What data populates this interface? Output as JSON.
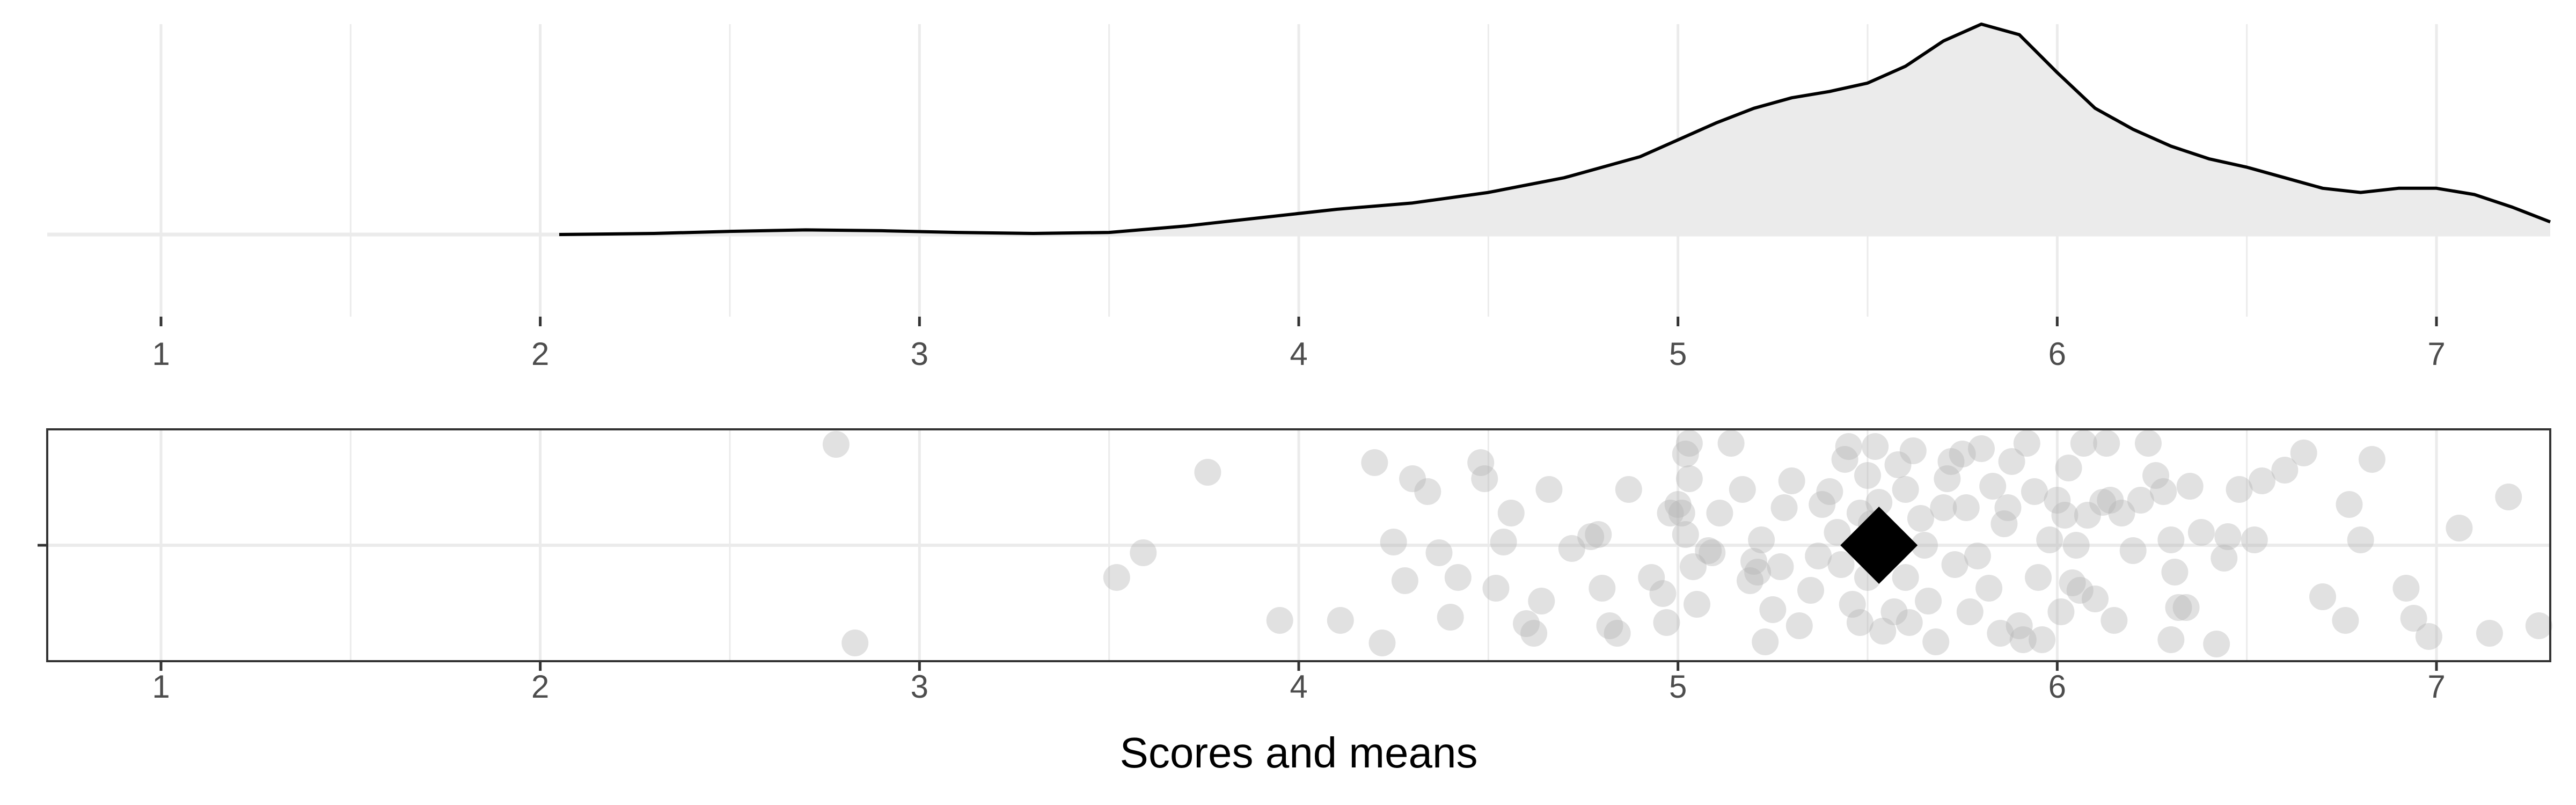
{
  "chart_data": [
    {
      "type": "density",
      "title": "",
      "xlabel": "",
      "ylabel": "",
      "xlim": [
        0.7,
        7.3
      ],
      "x_ticks": [
        "1",
        "2",
        "3",
        "4",
        "5",
        "6",
        "7"
      ],
      "grid": true,
      "fill_color": "#ebebeb",
      "line_color": "#000000",
      "density_curve": {
        "x": [
          2.05,
          2.3,
          2.5,
          2.7,
          2.9,
          3.1,
          3.3,
          3.5,
          3.7,
          3.9,
          4.1,
          4.3,
          4.5,
          4.7,
          4.9,
          5.0,
          5.1,
          5.2,
          5.3,
          5.4,
          5.5,
          5.6,
          5.7,
          5.8,
          5.9,
          6.0,
          6.1,
          6.2,
          6.3,
          6.4,
          6.5,
          6.6,
          6.7,
          6.8,
          6.9,
          7.0,
          7.1,
          7.2,
          7.3
        ],
        "y": [
          0.0,
          0.005,
          0.015,
          0.022,
          0.018,
          0.01,
          0.005,
          0.01,
          0.04,
          0.08,
          0.12,
          0.15,
          0.2,
          0.27,
          0.37,
          0.45,
          0.53,
          0.6,
          0.65,
          0.68,
          0.72,
          0.8,
          0.92,
          1.0,
          0.95,
          0.77,
          0.6,
          0.5,
          0.42,
          0.36,
          0.32,
          0.27,
          0.22,
          0.2,
          0.22,
          0.22,
          0.19,
          0.13,
          0.06
        ]
      }
    },
    {
      "type": "scatter",
      "title": "",
      "xlabel": "Scores and means",
      "ylabel": "",
      "xlim": [
        0.7,
        7.3
      ],
      "x_ticks": [
        "1",
        "2",
        "3",
        "4",
        "5",
        "6",
        "7"
      ],
      "grid": true,
      "point_color": "#b3b3b3",
      "point_opacity": 0.4,
      "mean": 5.53,
      "mean_marker": "diamond",
      "points": [
        [
          2.78,
          0.94
        ],
        [
          2.83,
          -0.91
        ],
        [
          3.52,
          -0.3
        ],
        [
          3.59,
          -0.07
        ],
        [
          3.76,
          0.68
        ],
        [
          3.95,
          -0.7
        ],
        [
          4.11,
          -0.7
        ],
        [
          4.2,
          0.77
        ],
        [
          4.22,
          -0.91
        ],
        [
          4.25,
          0.03
        ],
        [
          4.28,
          -0.33
        ],
        [
          4.3,
          0.62
        ],
        [
          4.34,
          0.5
        ],
        [
          4.37,
          -0.07
        ],
        [
          4.4,
          -0.67
        ],
        [
          4.42,
          -0.3
        ],
        [
          4.48,
          0.77
        ],
        [
          4.49,
          0.62
        ],
        [
          4.52,
          -0.4
        ],
        [
          4.54,
          0.03
        ],
        [
          4.56,
          0.3
        ],
        [
          4.6,
          -0.73
        ],
        [
          4.62,
          -0.82
        ],
        [
          4.64,
          -0.52
        ],
        [
          4.66,
          0.52
        ],
        [
          4.72,
          -0.03
        ],
        [
          4.77,
          0.08
        ],
        [
          4.79,
          0.1
        ],
        [
          4.8,
          -0.4
        ],
        [
          4.82,
          -0.75
        ],
        [
          4.84,
          -0.82
        ],
        [
          4.87,
          0.52
        ],
        [
          4.93,
          -0.3
        ],
        [
          4.96,
          -0.45
        ],
        [
          4.97,
          -0.72
        ],
        [
          4.98,
          0.3
        ],
        [
          5.0,
          0.38
        ],
        [
          5.01,
          0.3
        ],
        [
          5.02,
          0.1
        ],
        [
          5.02,
          0.85
        ],
        [
          5.03,
          0.62
        ],
        [
          5.03,
          0.95
        ],
        [
          5.04,
          -0.2
        ],
        [
          5.05,
          -0.55
        ],
        [
          5.08,
          -0.05
        ],
        [
          5.09,
          -0.07
        ],
        [
          5.11,
          0.3
        ],
        [
          5.14,
          0.95
        ],
        [
          5.17,
          0.52
        ],
        [
          5.19,
          -0.33
        ],
        [
          5.2,
          -0.15
        ],
        [
          5.21,
          -0.25
        ],
        [
          5.22,
          0.05
        ],
        [
          5.23,
          -0.9
        ],
        [
          5.25,
          -0.6
        ],
        [
          5.27,
          -0.2
        ],
        [
          5.28,
          0.35
        ],
        [
          5.3,
          0.6
        ],
        [
          5.32,
          -0.75
        ],
        [
          5.35,
          -0.42
        ],
        [
          5.37,
          -0.1
        ],
        [
          5.38,
          0.38
        ],
        [
          5.4,
          0.5
        ],
        [
          5.42,
          0.12
        ],
        [
          5.43,
          -0.18
        ],
        [
          5.44,
          0.8
        ],
        [
          5.45,
          0.92
        ],
        [
          5.46,
          -0.55
        ],
        [
          5.48,
          -0.72
        ],
        [
          5.48,
          0.3
        ],
        [
          5.5,
          -0.3
        ],
        [
          5.5,
          0.65
        ],
        [
          5.51,
          0.2
        ],
        [
          5.52,
          0.92
        ],
        [
          5.53,
          0.4
        ],
        [
          5.54,
          -0.8
        ],
        [
          5.55,
          0.1
        ],
        [
          5.57,
          -0.62
        ],
        [
          5.58,
          0.75
        ],
        [
          5.6,
          -0.3
        ],
        [
          5.6,
          0.52
        ],
        [
          5.61,
          -0.72
        ],
        [
          5.62,
          0.88
        ],
        [
          5.64,
          0.25
        ],
        [
          5.65,
          0.0
        ],
        [
          5.66,
          -0.52
        ],
        [
          5.68,
          -0.9
        ],
        [
          5.7,
          0.35
        ],
        [
          5.71,
          0.62
        ],
        [
          5.72,
          0.78
        ],
        [
          5.73,
          -0.18
        ],
        [
          5.75,
          0.85
        ],
        [
          5.76,
          0.35
        ],
        [
          5.77,
          -0.62
        ],
        [
          5.79,
          -0.1
        ],
        [
          5.8,
          0.9
        ],
        [
          5.82,
          -0.4
        ],
        [
          5.83,
          0.55
        ],
        [
          5.85,
          -0.82
        ],
        [
          5.86,
          0.2
        ],
        [
          5.87,
          0.35
        ],
        [
          5.88,
          0.78
        ],
        [
          5.9,
          -0.75
        ],
        [
          5.91,
          -0.88
        ],
        [
          5.92,
          0.95
        ],
        [
          5.94,
          0.5
        ],
        [
          5.95,
          -0.3
        ],
        [
          5.96,
          -0.88
        ],
        [
          5.98,
          0.05
        ],
        [
          6.0,
          0.42
        ],
        [
          6.01,
          -0.62
        ],
        [
          6.02,
          0.28
        ],
        [
          6.03,
          0.72
        ],
        [
          6.04,
          -0.35
        ],
        [
          6.05,
          0.0
        ],
        [
          6.06,
          -0.42
        ],
        [
          6.07,
          0.95
        ],
        [
          6.08,
          0.28
        ],
        [
          6.1,
          -0.5
        ],
        [
          6.12,
          0.4
        ],
        [
          6.13,
          0.95
        ],
        [
          6.14,
          0.42
        ],
        [
          6.15,
          -0.7
        ],
        [
          6.17,
          0.3
        ],
        [
          6.2,
          -0.05
        ],
        [
          6.22,
          0.42
        ],
        [
          6.24,
          0.95
        ],
        [
          6.26,
          0.65
        ],
        [
          6.28,
          0.5
        ],
        [
          6.3,
          -0.88
        ],
        [
          6.3,
          0.05
        ],
        [
          6.31,
          -0.25
        ],
        [
          6.32,
          -0.58
        ],
        [
          6.34,
          -0.58
        ],
        [
          6.35,
          0.55
        ],
        [
          6.38,
          0.12
        ],
        [
          6.42,
          -0.92
        ],
        [
          6.44,
          -0.12
        ],
        [
          6.45,
          0.08
        ],
        [
          6.48,
          0.52
        ],
        [
          6.52,
          0.05
        ],
        [
          6.54,
          0.6
        ],
        [
          6.6,
          0.7
        ],
        [
          6.65,
          0.86
        ],
        [
          6.7,
          -0.48
        ],
        [
          6.76,
          -0.7
        ],
        [
          6.77,
          0.38
        ],
        [
          6.8,
          0.05
        ],
        [
          6.83,
          0.8
        ],
        [
          6.92,
          -0.4
        ],
        [
          6.94,
          -0.68
        ],
        [
          6.98,
          -0.85
        ],
        [
          7.06,
          0.16
        ],
        [
          7.14,
          -0.82
        ],
        [
          7.19,
          0.45
        ],
        [
          7.27,
          -0.75
        ]
      ]
    }
  ]
}
